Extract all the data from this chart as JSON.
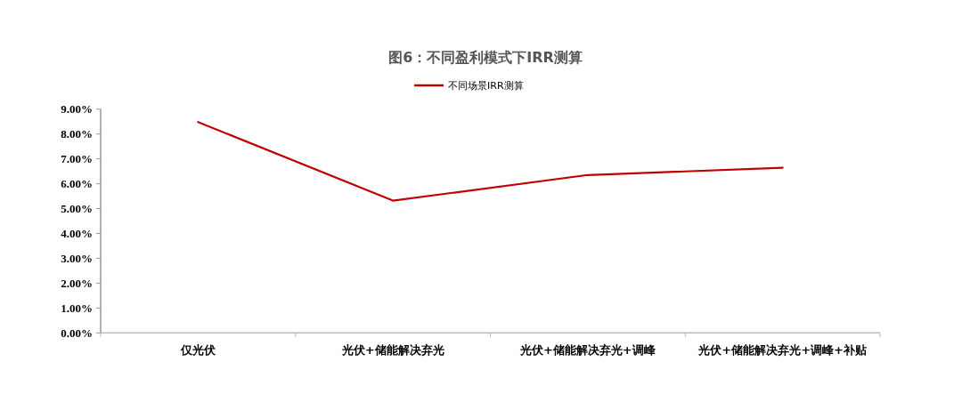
{
  "chart_data": {
    "type": "line",
    "title": "图6：不同盈利模式下IRR测算",
    "categories": [
      "仅光伏",
      "光伏+储能解决弃光",
      "光伏+储能解决弃光+调峰",
      "光伏+储能解决弃光+调峰+补贴"
    ],
    "series": [
      {
        "name": "不同场景IRR测算",
        "color": "#c00000",
        "values": [
          8.48,
          5.32,
          6.35,
          6.64
        ]
      }
    ],
    "ylim": [
      0,
      9
    ],
    "yticks": [
      {
        "value": 0,
        "label": "0.00%"
      },
      {
        "value": 1,
        "label": "1.00%"
      },
      {
        "value": 2,
        "label": "2.00%"
      },
      {
        "value": 3,
        "label": "3.00%"
      },
      {
        "value": 4,
        "label": "4.00%"
      },
      {
        "value": 5,
        "label": "5.00%"
      },
      {
        "value": 6,
        "label": "6.00%"
      },
      {
        "value": 7,
        "label": "7.00%"
      },
      {
        "value": 8,
        "label": "8.00%"
      },
      {
        "value": 9,
        "label": "9.00%"
      }
    ],
    "legend": "top",
    "grid": false,
    "marker": "none",
    "line_style": "solid"
  }
}
